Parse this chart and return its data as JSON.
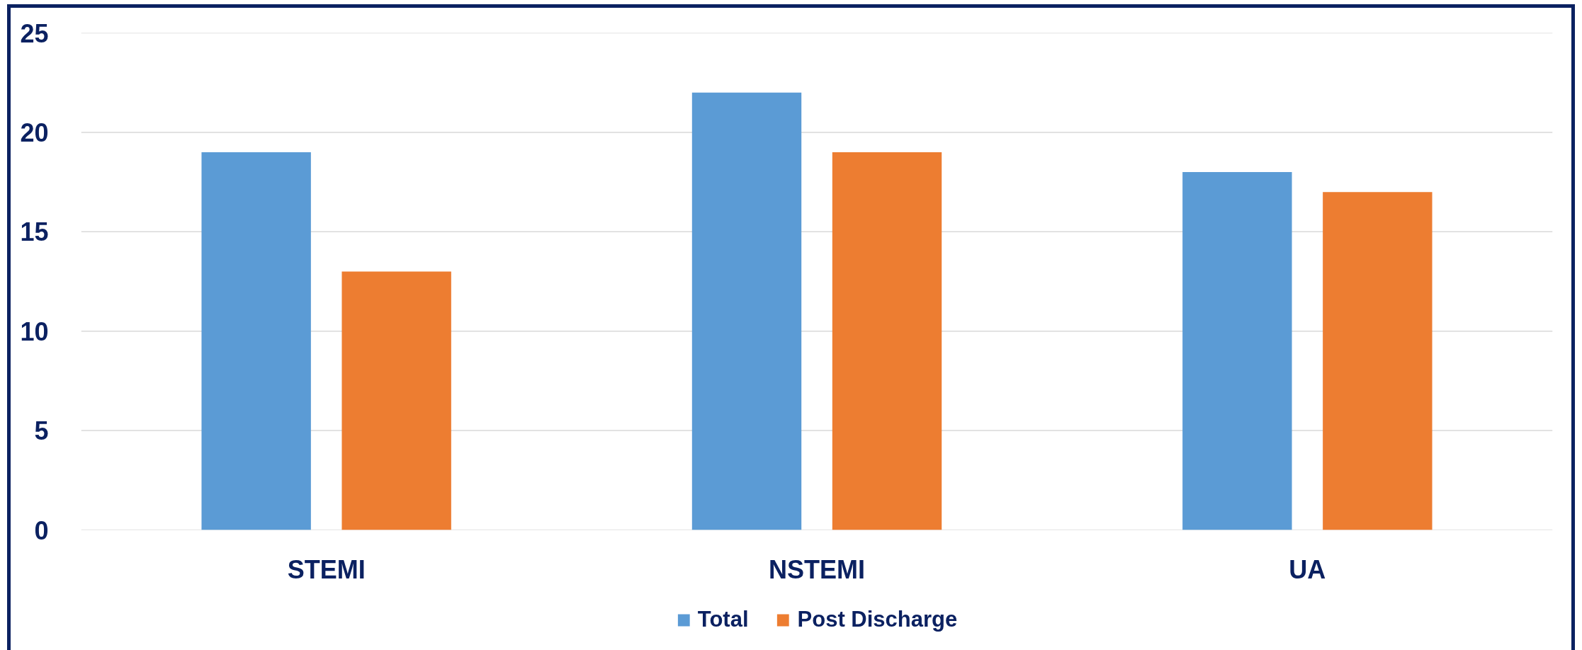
{
  "chart_data": {
    "type": "bar",
    "categories": [
      "STEMI",
      "NSTEMI",
      "UA"
    ],
    "series": [
      {
        "name": "Total",
        "color": "#5b9bd5",
        "values": [
          19,
          22,
          18
        ]
      },
      {
        "name": "Post Discharge",
        "color": "#ed7d31",
        "values": [
          13,
          19,
          17
        ]
      }
    ],
    "ylim": [
      0,
      25
    ],
    "yticks": [
      0,
      5,
      10,
      15,
      20,
      25
    ],
    "grid": "y",
    "legend": "bottom"
  }
}
